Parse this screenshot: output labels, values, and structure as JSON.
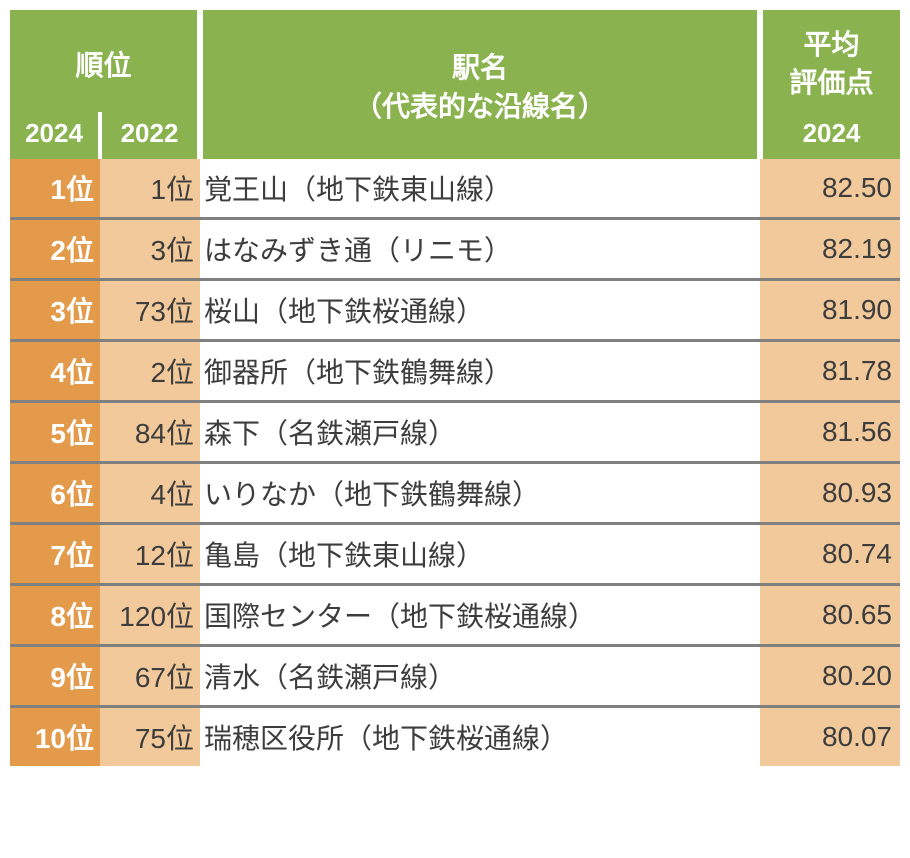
{
  "colors": {
    "header_bg": "#8ab24f",
    "rank2024_bg": "#e39a4b",
    "rank2022_bg": "#f2c99b",
    "score_bg": "#f2c99b",
    "row_divider": "#808080",
    "text_dark": "#3d3d3d",
    "text_light": "#ffffff"
  },
  "header": {
    "rank_label": "順位",
    "station_label_line1": "駅名",
    "station_label_line2": "（代表的な沿線名）",
    "score_label_line1": "平均",
    "score_label_line2": "評価点",
    "year_2024": "2024",
    "year_2022": "2022"
  },
  "columns": {
    "rank2024_width": 90,
    "rank2022_width": 100,
    "station_width": 560,
    "score_width": 140
  },
  "rows": [
    {
      "rank2024": "1位",
      "rank2022": "1位",
      "station": "覚王山（地下鉄東山線）",
      "score": "82.50"
    },
    {
      "rank2024": "2位",
      "rank2022": "3位",
      "station": "はなみずき通（リニモ）",
      "score": "82.19"
    },
    {
      "rank2024": "3位",
      "rank2022": "73位",
      "station": "桜山（地下鉄桜通線）",
      "score": "81.90"
    },
    {
      "rank2024": "4位",
      "rank2022": "2位",
      "station": "御器所（地下鉄鶴舞線）",
      "score": "81.78"
    },
    {
      "rank2024": "5位",
      "rank2022": "84位",
      "station": "森下（名鉄瀬戸線）",
      "score": "81.56"
    },
    {
      "rank2024": "6位",
      "rank2022": "4位",
      "station": "いりなか（地下鉄鶴舞線）",
      "score": "80.93"
    },
    {
      "rank2024": "7位",
      "rank2022": "12位",
      "station": "亀島（地下鉄東山線）",
      "score": "80.74"
    },
    {
      "rank2024": "8位",
      "rank2022": "120位",
      "station": "国際センター（地下鉄桜通線）",
      "score": "80.65"
    },
    {
      "rank2024": "9位",
      "rank2022": "67位",
      "station": "清水（名鉄瀬戸線）",
      "score": "80.20"
    },
    {
      "rank2024": "10位",
      "rank2022": "75位",
      "station": "瑞穂区役所（地下鉄桜通線）",
      "score": "80.07"
    }
  ]
}
